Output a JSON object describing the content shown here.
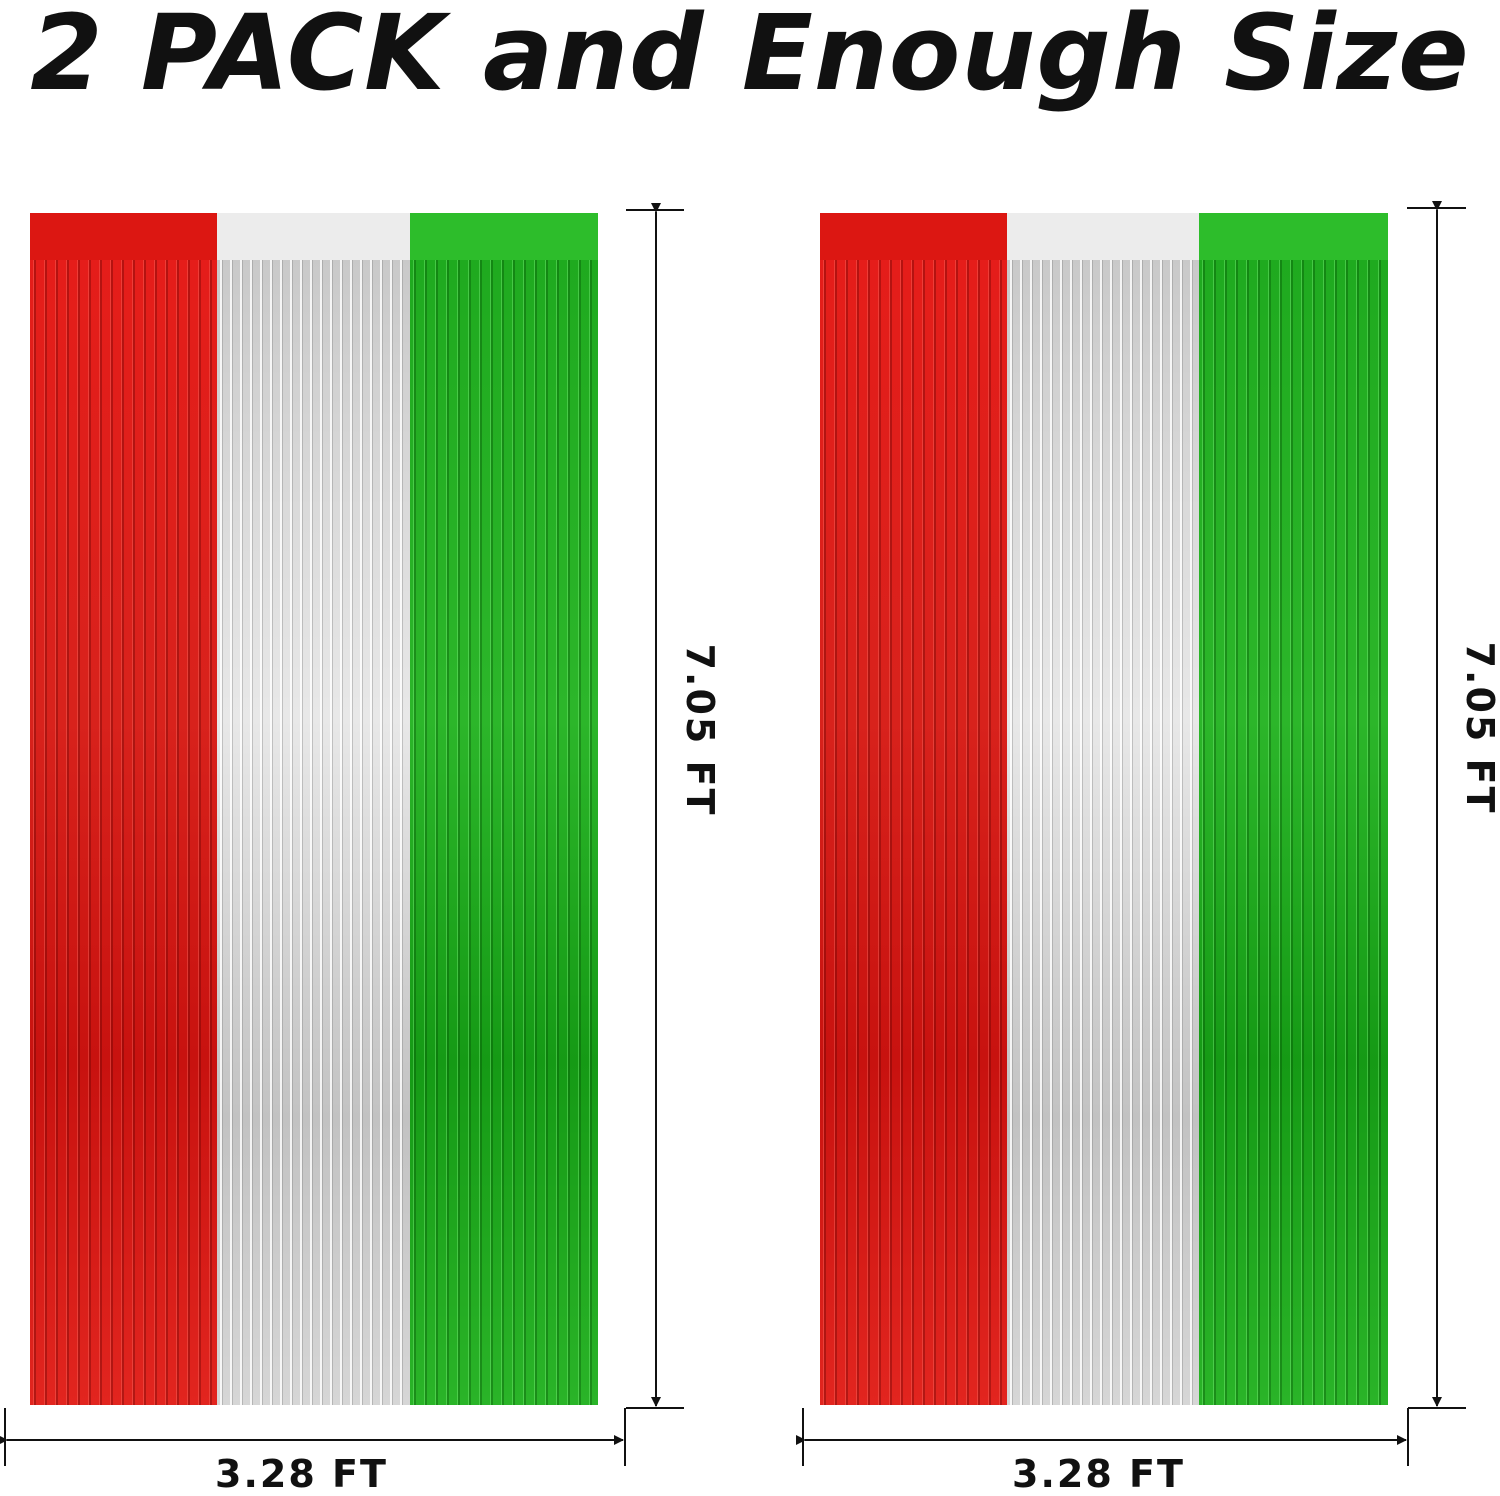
{
  "title": "2 PACK and Enough Size",
  "curtains": [
    {
      "height_label": "7.05 FT",
      "width_label": "3.28 FT"
    },
    {
      "height_label": "7.05 FT",
      "width_label": "3.28 FT"
    }
  ],
  "colors": {
    "red": "#dc1712",
    "silver": "#e0e0e0",
    "green": "#2dbd2b"
  }
}
